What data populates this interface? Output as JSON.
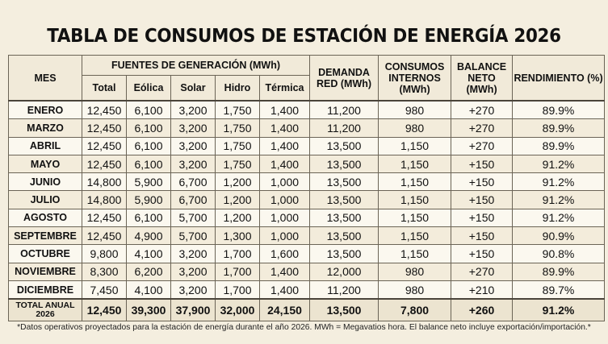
{
  "title": "TABLA DE CONSUMOS DE ESTACIÓN DE ENERGÍA 2026",
  "header": {
    "mes": "MES",
    "fuentes": "FUENTES DE GENERACIÓN (MWh)",
    "total": "Total",
    "eolica": "Eólica",
    "solar": "Solar",
    "hidro": "Hidro",
    "termica": "Térmica",
    "demanda": "DEMANDA RED (MWh)",
    "consumos": "CONSUMOS INTERNOS (MWh)",
    "balance": "BALANCE NETO (MWh)",
    "rendimiento": "RENDIMIENTO (%)"
  },
  "rows": [
    [
      "ENERO",
      "12,450",
      "6,100",
      "3,200",
      "1,750",
      "1,400",
      "11,200",
      "980",
      "+270",
      "89.9%"
    ],
    [
      "MARZO",
      "12,450",
      "6,100",
      "3,200",
      "1,750",
      "1,400",
      "11,200",
      "980",
      "+270",
      "89.9%"
    ],
    [
      "ABRIL",
      "12,450",
      "6,100",
      "3,200",
      "1,750",
      "1,400",
      "13,500",
      "1,150",
      "+270",
      "89.9%"
    ],
    [
      "MAYO",
      "12,450",
      "6,100",
      "3,200",
      "1,750",
      "1,400",
      "13,500",
      "1,150",
      "+150",
      "91.2%"
    ],
    [
      "JUNIO",
      "14,800",
      "5,900",
      "6,700",
      "1,200",
      "1,000",
      "13,500",
      "1,150",
      "+150",
      "91.2%"
    ],
    [
      "JULIO",
      "14,800",
      "5,900",
      "6,700",
      "1,200",
      "1,000",
      "13,500",
      "1,150",
      "+150",
      "91.2%"
    ],
    [
      "AGOSTO",
      "12,450",
      "6,100",
      "5,700",
      "1,200",
      "1,000",
      "13,500",
      "1,150",
      "+150",
      "91.2%"
    ],
    [
      "SEPTEMBRE",
      "12,450",
      "4,900",
      "5,700",
      "1,300",
      "1,000",
      "13,500",
      "1,150",
      "+150",
      "90.9%"
    ],
    [
      "OCTUBRE",
      "9,800",
      "4,100",
      "3,200",
      "1,700",
      "1,600",
      "13,500",
      "1,150",
      "+150",
      "90.8%"
    ],
    [
      "NOVIEMBRE",
      "8,300",
      "6,200",
      "3,200",
      "1,700",
      "1,400",
      "12,000",
      "980",
      "+270",
      "89.9%"
    ],
    [
      "DICIEMBRE",
      "7,450",
      "4,100",
      "3,200",
      "1,700",
      "1,400",
      "11,200",
      "980",
      "+210",
      "89.7%"
    ]
  ],
  "total_row": [
    "TOTAL ANUAL 2026",
    "12,450",
    "39,300",
    "37,900",
    "32,000",
    "24,150",
    "13,500",
    "7,800",
    "+260",
    "91.2%"
  ],
  "footnote": "*Datos operativos proyectados para la estación de energía durante el año 2026. MWh = Megavatios hora. El balance neto incluye exportación/importación.*"
}
